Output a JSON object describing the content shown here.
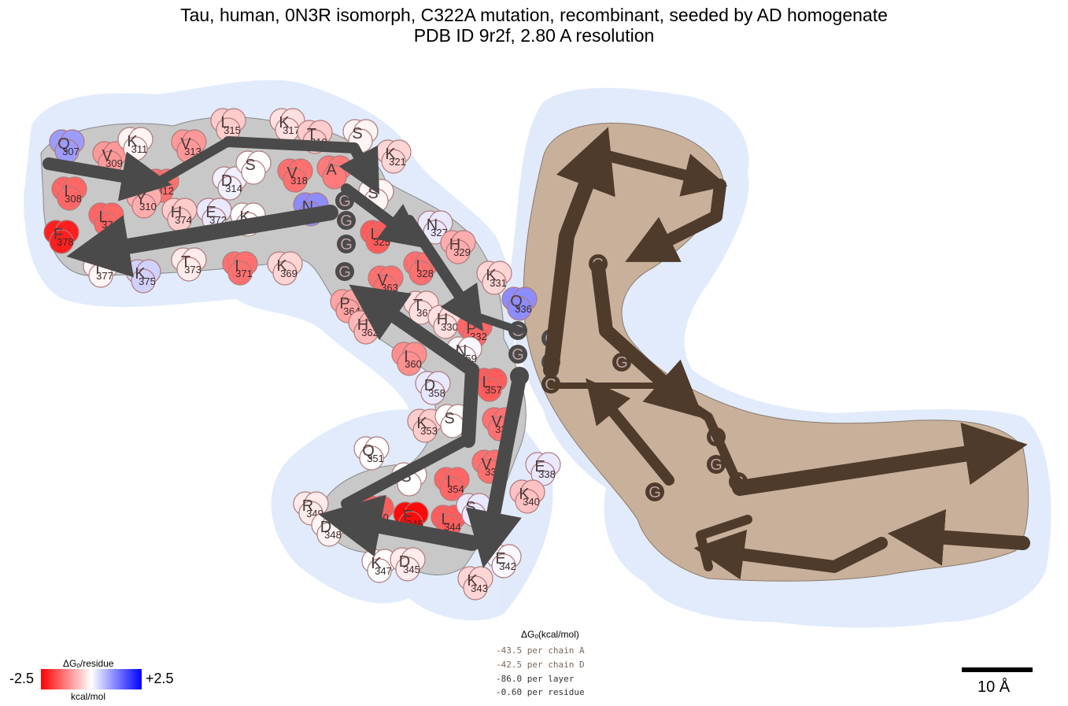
{
  "title": {
    "line1": "Tau, human, 0N3R isomorph, C322A mutation, recombinant, seeded by AD homogenate",
    "line2": "PDB ID 9r2f, 2.80 A resolution"
  },
  "energy_summary": {
    "header": "ΔGₒ(kcal/mol)",
    "lines": [
      {
        "text": "-43.5 per chain A",
        "color": "#7a6a58"
      },
      {
        "text": "-42.5 per chain D",
        "color": "#7a6a58"
      },
      {
        "text": "-86.0 per layer",
        "color": "#333333"
      },
      {
        "text": "-0.60 per residue",
        "color": "#333333"
      }
    ]
  },
  "colorbar": {
    "title": "ΔGₒ/residue",
    "min_label": "-2.5",
    "max_label": "+2.5",
    "unit": "kcal/mol",
    "colors": [
      "#ff0000",
      "#ffffff",
      "#0000ff"
    ]
  },
  "scale_bar": {
    "label": "10 Å"
  },
  "chains": {
    "A": {
      "backbone_color": "#4a4a4a",
      "region_color": "#c8c8c8"
    },
    "D": {
      "backbone_color": "#4e3b2c",
      "region_color": "#c9b09a"
    }
  },
  "residues": [
    {
      "aa": "Q",
      "num": "307",
      "dg": 1.3,
      "chain": "A1"
    },
    {
      "aa": "V",
      "num": "309",
      "dg": -1.0,
      "chain": "A1"
    },
    {
      "aa": "K",
      "num": "311",
      "dg": -0.1,
      "chain": "A1"
    },
    {
      "aa": "V",
      "num": "313",
      "dg": -1.0,
      "chain": "A1"
    },
    {
      "aa": "L",
      "num": "315",
      "dg": -0.5,
      "chain": "A1"
    },
    {
      "aa": "K",
      "num": "317",
      "dg": -0.3,
      "chain": "A1"
    },
    {
      "aa": "T",
      "num": "319",
      "dg": -0.5,
      "chain": "A1"
    },
    {
      "aa": "S",
      "num": "",
      "dg": -0.1,
      "chain": "A1"
    },
    {
      "aa": "K",
      "num": "321",
      "dg": -0.4,
      "chain": "A1"
    },
    {
      "aa": "I",
      "num": "308",
      "dg": -1.5,
      "chain": "A1"
    },
    {
      "aa": "P",
      "num": "312",
      "dg": -1.4,
      "chain": "A1"
    },
    {
      "aa": "Y",
      "num": "310",
      "dg": -0.8,
      "chain": "A1"
    },
    {
      "aa": "L",
      "num": "376",
      "dg": -1.5,
      "chain": "A1"
    },
    {
      "aa": "H",
      "num": "374",
      "dg": -0.5,
      "chain": "A1"
    },
    {
      "aa": "E",
      "num": "372",
      "dg": 0.3,
      "chain": "A1"
    },
    {
      "aa": "D",
      "num": "314",
      "dg": 0.2,
      "chain": "A1"
    },
    {
      "aa": "S",
      "num": "",
      "dg": 0.0,
      "chain": "A1"
    },
    {
      "aa": "V",
      "num": "318",
      "dg": -1.4,
      "chain": "A1"
    },
    {
      "aa": "A",
      "num": "",
      "dg": -1.3,
      "chain": "A1"
    },
    {
      "aa": "K",
      "num": "370",
      "dg": 0.0,
      "chain": "A1"
    },
    {
      "aa": "N",
      "num": "368",
      "dg": 1.5,
      "chain": "A1"
    },
    {
      "aa": "F",
      "num": "378",
      "dg": -2.2,
      "chain": "A1"
    },
    {
      "aa": "T",
      "num": "377",
      "dg": -0.1,
      "chain": "A1"
    },
    {
      "aa": "K",
      "num": "375",
      "dg": 0.6,
      "chain": "A1"
    },
    {
      "aa": "T",
      "num": "373",
      "dg": -0.2,
      "chain": "A1"
    },
    {
      "aa": "I",
      "num": "371",
      "dg": -1.4,
      "chain": "A1"
    },
    {
      "aa": "K",
      "num": "369",
      "dg": -0.4,
      "chain": "A1"
    },
    {
      "aa": "G",
      "num": "",
      "dg": 0,
      "chain": "Agly"
    },
    {
      "aa": "S",
      "num": "",
      "dg": -0.1,
      "chain": "A2"
    },
    {
      "aa": "L",
      "num": "325",
      "dg": -1.6,
      "chain": "A2"
    },
    {
      "aa": "V",
      "num": "363",
      "dg": -1.4,
      "chain": "A2"
    },
    {
      "aa": "I",
      "num": "328",
      "dg": -1.4,
      "chain": "A2"
    },
    {
      "aa": "N",
      "num": "327",
      "dg": 0.3,
      "chain": "A2"
    },
    {
      "aa": "H",
      "num": "329",
      "dg": -0.8,
      "chain": "A2"
    },
    {
      "aa": "K",
      "num": "331",
      "dg": -0.4,
      "chain": "A2"
    },
    {
      "aa": "Q",
      "num": "336",
      "dg": 1.5,
      "chain": "A2"
    },
    {
      "aa": "P",
      "num": "364",
      "dg": -0.9,
      "chain": "A2"
    },
    {
      "aa": "H",
      "num": "362",
      "dg": -0.7,
      "chain": "A2"
    },
    {
      "aa": "T",
      "num": "361",
      "dg": -0.3,
      "chain": "A2"
    },
    {
      "aa": "H",
      "num": "330",
      "dg": -0.3,
      "chain": "A2"
    },
    {
      "aa": "P",
      "num": "332",
      "dg": -1.5,
      "chain": "A2"
    },
    {
      "aa": "N",
      "num": "359",
      "dg": 0.1,
      "chain": "A2"
    },
    {
      "aa": "I",
      "num": "360",
      "dg": -1.1,
      "chain": "A2"
    },
    {
      "aa": "D",
      "num": "358",
      "dg": 0.3,
      "chain": "A2"
    },
    {
      "aa": "L",
      "num": "357",
      "dg": -1.6,
      "chain": "A2"
    },
    {
      "aa": "V",
      "num": "337",
      "dg": -1.4,
      "chain": "A2"
    },
    {
      "aa": "K",
      "num": "353",
      "dg": -0.5,
      "chain": "A2"
    },
    {
      "aa": "S",
      "num": "",
      "dg": 0.0,
      "chain": "A2"
    },
    {
      "aa": "Q",
      "num": "351",
      "dg": 0.0,
      "chain": "A2"
    },
    {
      "aa": "V",
      "num": "339",
      "dg": -1.4,
      "chain": "A2"
    },
    {
      "aa": "E",
      "num": "338",
      "dg": 0.3,
      "chain": "A2"
    },
    {
      "aa": "I",
      "num": "354",
      "dg": -1.5,
      "chain": "A2"
    },
    {
      "aa": "S",
      "num": "",
      "dg": 0.0,
      "chain": "A2"
    },
    {
      "aa": "R",
      "num": "349",
      "dg": -0.2,
      "chain": "A2"
    },
    {
      "aa": "V",
      "num": "350",
      "dg": -1.6,
      "chain": "A2"
    },
    {
      "aa": "F",
      "num": "346",
      "dg": -2.4,
      "chain": "A2"
    },
    {
      "aa": "L",
      "num": "344",
      "dg": -1.6,
      "chain": "A2"
    },
    {
      "aa": "S",
      "num": "",
      "dg": 0.3,
      "chain": "A2"
    },
    {
      "aa": "K",
      "num": "340",
      "dg": -0.6,
      "chain": "A2"
    },
    {
      "aa": "D",
      "num": "348",
      "dg": -0.1,
      "chain": "A2"
    },
    {
      "aa": "K",
      "num": "347",
      "dg": 0.0,
      "chain": "A2"
    },
    {
      "aa": "D",
      "num": "345",
      "dg": -0.2,
      "chain": "A2"
    },
    {
      "aa": "K",
      "num": "343",
      "dg": -0.4,
      "chain": "A2"
    },
    {
      "aa": "E",
      "num": "342",
      "dg": 0.1,
      "chain": "A2"
    }
  ]
}
